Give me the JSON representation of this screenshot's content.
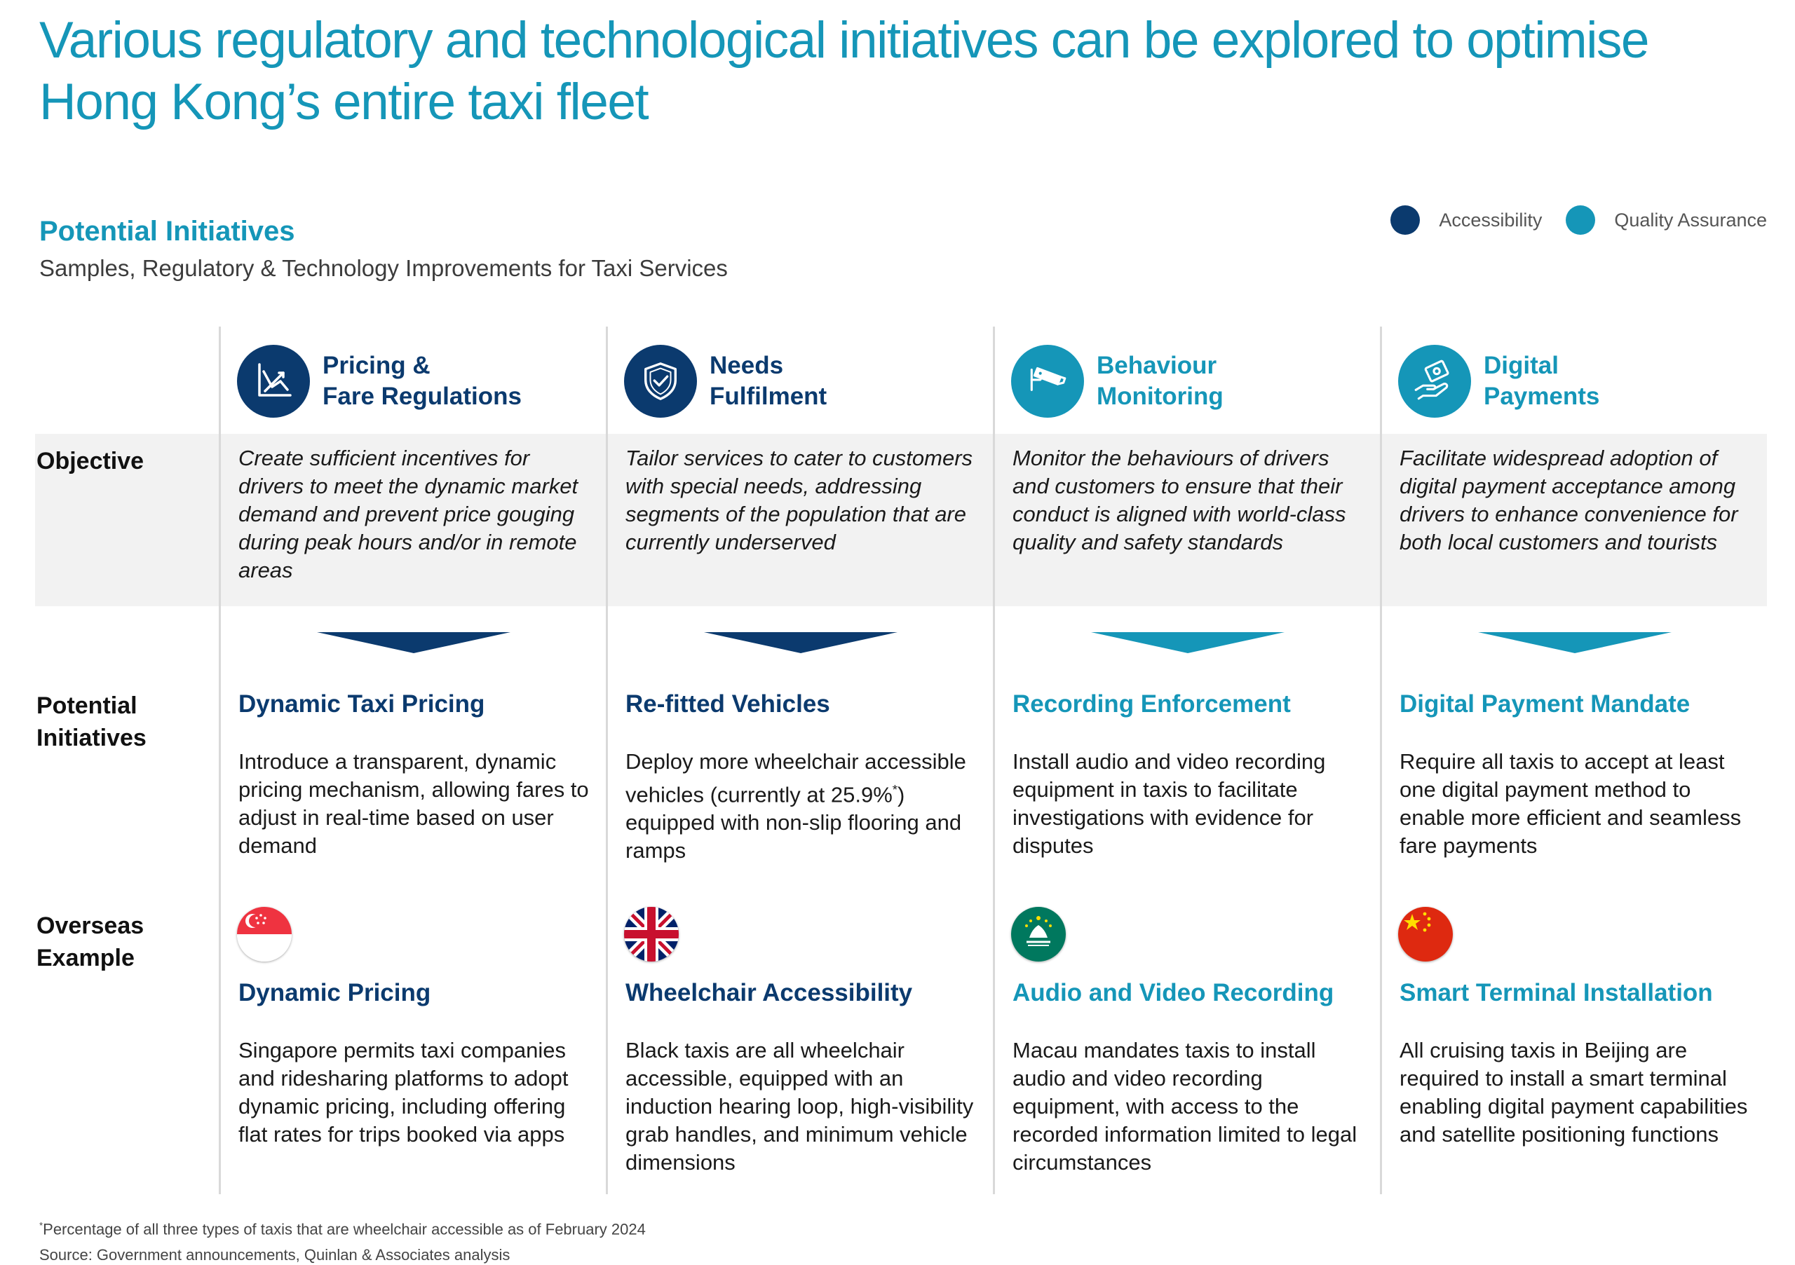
{
  "title": "Various regulatory and technological initiatives can be explored to optimise Hong Kong’s entire taxi fleet",
  "section": {
    "title": "Potential Initiatives",
    "subtitle": "Samples, Regulatory & Technology Improvements for Taxi Services"
  },
  "legend": [
    {
      "label": "Accessibility",
      "color": "#0b3a6e"
    },
    {
      "label": "Quality Assurance",
      "color": "#1596b8"
    }
  ],
  "row_labels": {
    "objective": "Objective",
    "initiatives_1": "Potential",
    "initiatives_2": "Initiatives",
    "overseas_1": "Overseas",
    "overseas_2": "Example"
  },
  "columns": [
    {
      "head_line1": "Pricing &",
      "head_line2": "Fare Regulations",
      "icon": "pricing-chart-icon",
      "color": "#0b3a6e",
      "objective": "Create sufficient incentives for drivers to meet the dynamic market demand and prevent price gouging during peak hours and/or in remote areas",
      "initiative_title": "Dynamic Taxi Pricing",
      "initiative_text": "Introduce a transparent, dynamic pricing mechanism, allowing fares to adjust in real-time based on user demand",
      "flag": "singapore-flag-icon",
      "example_title": "Dynamic Pricing",
      "example_text": "Singapore permits taxi companies and ridesharing platforms to adopt dynamic pricing, including offering flat rates for trips booked via apps"
    },
    {
      "head_line1": "Needs",
      "head_line2": "Fulfilment",
      "icon": "shield-check-icon",
      "color": "#0b3a6e",
      "objective": "Tailor services to cater to customers with special needs, addressing segments of the population that are currently underserved",
      "initiative_title": "Re-fitted Vehicles",
      "initiative_text_a": "Deploy more wheelchair accessible vehicles (currently at 25.9%",
      "initiative_sup": "*",
      "initiative_text_b": ") equipped with non-slip flooring and ramps",
      "flag": "uk-flag-icon",
      "example_title": "Wheelchair Accessibility",
      "example_text": "Black taxis are all wheelchair accessible, equipped with an induction hearing loop, high-visibility grab handles, and minimum vehicle dimensions"
    },
    {
      "head_line1": "Behaviour",
      "head_line2": "Monitoring",
      "icon": "cctv-camera-icon",
      "color": "#1596b8",
      "objective": "Monitor the behaviours of drivers and customers to ensure that their conduct is aligned with world-class quality and safety standards",
      "initiative_title": "Recording Enforcement",
      "initiative_text": "Install audio and video recording equipment in taxis to facilitate investigations with evidence for disputes",
      "flag": "macau-flag-icon",
      "example_title": "Audio and Video Recording",
      "example_text": "Macau mandates taxis to install audio and video recording equipment, with access to the recorded information limited to legal circumstances"
    },
    {
      "head_line1": "Digital",
      "head_line2": "Payments",
      "icon": "hand-payment-icon",
      "color": "#1596b8",
      "objective": "Facilitate widespread adoption of digital payment acceptance among drivers to enhance convenience for both local customers and tourists",
      "initiative_title": "Digital Payment Mandate",
      "initiative_text": "Require all taxis to accept at least one digital payment method to enable more efficient and seamless fare payments",
      "flag": "china-flag-icon",
      "example_title": "Smart Terminal Installation",
      "example_text": "All cruising taxis in Beijing are required to install a smart terminal enabling digital payment capabilities and satellite positioning functions"
    }
  ],
  "footnote_marker": "*",
  "footnote": "Percentage of all three types of taxis that are wheelchair accessible as of February 2024",
  "source": "Source: Government announcements, Quinlan & Associates analysis"
}
